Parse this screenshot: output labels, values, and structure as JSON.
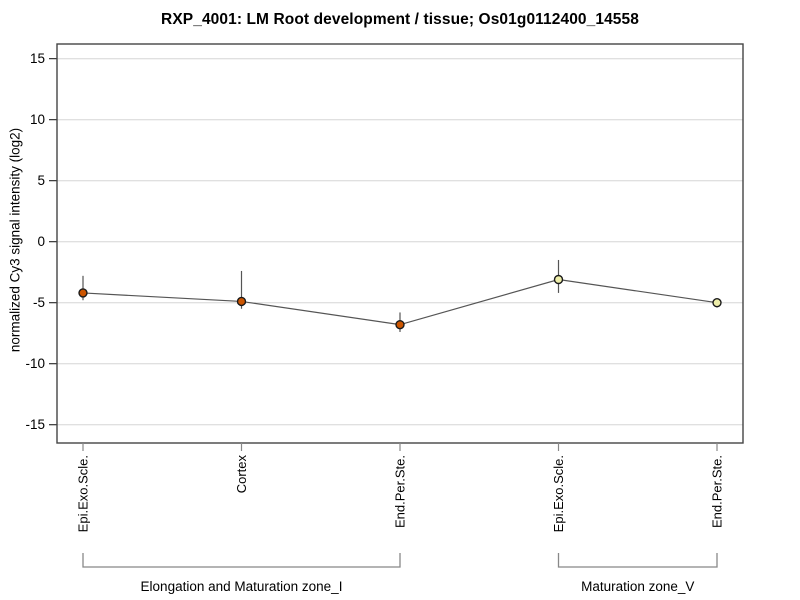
{
  "window": {
    "background": "#ffffff"
  },
  "chart_data": {
    "type": "line",
    "title": "RXP_4001: LM Root development / tissue; Os01g0112400_14558",
    "ylabel": "normalized Cy3 signal intensity (log2)",
    "xlabel": "",
    "ylim": [
      -16.5,
      16.2
    ],
    "yticks": [
      15,
      10,
      5,
      0,
      -5,
      -10,
      -15
    ],
    "grid": true,
    "legend": false,
    "categories": [
      "Epi.Exo.Scle.",
      "Cortex",
      "End.Per.Ste.",
      "Epi.Exo.Scle.",
      "End.Per.Ste."
    ],
    "values": [
      -4.2,
      -4.9,
      -6.8,
      -3.1,
      -5.0
    ],
    "err_high": [
      -2.8,
      -2.4,
      -5.8,
      -1.5,
      -4.7
    ],
    "err_low": [
      -4.8,
      -5.5,
      -7.4,
      -4.2,
      -5.4
    ],
    "point_colors": [
      "#cc5500",
      "#cc5500",
      "#cc5500",
      "#eeeeaa",
      "#eeeeaa"
    ],
    "groups": [
      {
        "label": "Elongation and Maturation zone_I",
        "from": 0,
        "to": 2
      },
      {
        "label": "Maturation zone_V",
        "from": 3,
        "to": 4
      }
    ],
    "colors": {
      "grid": "#e0e0e0",
      "frame": "#444444",
      "line": "#555555",
      "error_bar": "#555555",
      "point_stroke": "#1a1a1a",
      "bracket": "#888888",
      "axis_tick": "#333333",
      "x_tick": "#888888",
      "text": "#000000"
    }
  }
}
